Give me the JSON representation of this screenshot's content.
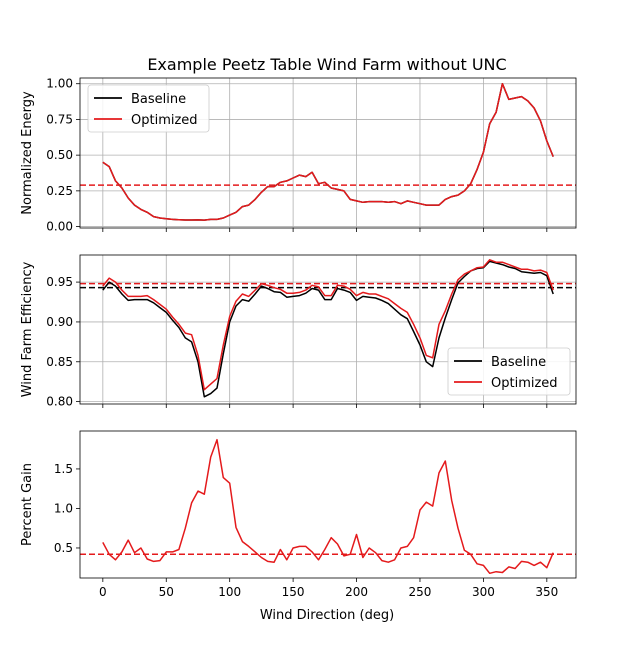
{
  "chart_data": [
    {
      "type": "line",
      "title": "Example Peetz Table Wind Farm without UNC",
      "xlabel": "",
      "ylabel": "Normalized Energy",
      "xlim": [
        -18,
        373
      ],
      "ylim": [
        -0.01,
        1.04
      ],
      "xticks": [
        0,
        50,
        100,
        150,
        200,
        250,
        300,
        350
      ],
      "yticks": [
        "0.00",
        "0.25",
        "0.50",
        "0.75",
        "1.00"
      ],
      "xtick_labels_visible": false,
      "grid": true,
      "legend": "top-left",
      "x": [
        0,
        5,
        10,
        15,
        20,
        25,
        30,
        35,
        40,
        45,
        50,
        55,
        60,
        65,
        70,
        75,
        80,
        85,
        90,
        95,
        100,
        105,
        110,
        115,
        120,
        125,
        130,
        135,
        140,
        145,
        150,
        155,
        160,
        165,
        170,
        175,
        180,
        185,
        190,
        195,
        200,
        205,
        210,
        215,
        220,
        225,
        230,
        235,
        240,
        245,
        250,
        255,
        260,
        265,
        270,
        275,
        280,
        285,
        290,
        295,
        300,
        305,
        310,
        315,
        320,
        325,
        330,
        335,
        340,
        345,
        350,
        355
      ],
      "series": [
        {
          "name": "Baseline",
          "color": "#000000",
          "values": [
            0.45,
            0.42,
            0.32,
            0.27,
            0.2,
            0.15,
            0.12,
            0.1,
            0.07,
            0.06,
            0.055,
            0.05,
            0.048,
            0.046,
            0.046,
            0.047,
            0.045,
            0.05,
            0.05,
            0.06,
            0.08,
            0.1,
            0.14,
            0.15,
            0.19,
            0.24,
            0.28,
            0.28,
            0.31,
            0.32,
            0.34,
            0.36,
            0.35,
            0.38,
            0.3,
            0.31,
            0.27,
            0.26,
            0.25,
            0.19,
            0.18,
            0.17,
            0.175,
            0.175,
            0.175,
            0.17,
            0.175,
            0.16,
            0.18,
            0.17,
            0.16,
            0.15,
            0.15,
            0.15,
            0.19,
            0.21,
            0.22,
            0.25,
            0.3,
            0.4,
            0.52,
            0.72,
            0.8,
            1.0,
            0.89,
            0.9,
            0.91,
            0.88,
            0.83,
            0.74,
            0.6,
            0.49
          ]
        },
        {
          "name": "Optimized",
          "color": "#e41a1c",
          "values": [
            0.45,
            0.42,
            0.32,
            0.27,
            0.2,
            0.15,
            0.12,
            0.1,
            0.07,
            0.06,
            0.055,
            0.05,
            0.048,
            0.046,
            0.046,
            0.047,
            0.045,
            0.05,
            0.05,
            0.06,
            0.08,
            0.1,
            0.14,
            0.15,
            0.19,
            0.24,
            0.28,
            0.28,
            0.31,
            0.32,
            0.34,
            0.36,
            0.35,
            0.38,
            0.3,
            0.31,
            0.27,
            0.26,
            0.25,
            0.19,
            0.18,
            0.17,
            0.175,
            0.175,
            0.175,
            0.17,
            0.175,
            0.16,
            0.18,
            0.17,
            0.16,
            0.15,
            0.15,
            0.15,
            0.19,
            0.21,
            0.22,
            0.25,
            0.3,
            0.4,
            0.52,
            0.72,
            0.8,
            1.0,
            0.89,
            0.9,
            0.91,
            0.88,
            0.83,
            0.74,
            0.6,
            0.49
          ]
        }
      ],
      "hlines": [
        {
          "y": 0.29,
          "color": "#e41a1c",
          "style": "dashed"
        }
      ]
    },
    {
      "type": "line",
      "title": "",
      "xlabel": "",
      "ylabel": "Wind Farm Efficiency",
      "xlim": [
        -18,
        373
      ],
      "ylim": [
        0.797,
        0.984
      ],
      "xticks": [
        0,
        50,
        100,
        150,
        200,
        250,
        300,
        350
      ],
      "yticks": [
        "0.80",
        "0.85",
        "0.90",
        "0.95"
      ],
      "xtick_labels_visible": false,
      "grid": true,
      "legend": "bottom-right",
      "x": [
        0,
        5,
        10,
        15,
        20,
        25,
        30,
        35,
        40,
        45,
        50,
        55,
        60,
        65,
        70,
        75,
        80,
        85,
        90,
        95,
        100,
        105,
        110,
        115,
        120,
        125,
        130,
        135,
        140,
        145,
        150,
        155,
        160,
        165,
        170,
        175,
        180,
        185,
        190,
        195,
        200,
        205,
        210,
        215,
        220,
        225,
        230,
        235,
        240,
        245,
        250,
        255,
        260,
        265,
        270,
        275,
        280,
        285,
        290,
        295,
        300,
        305,
        310,
        315,
        320,
        325,
        330,
        335,
        340,
        345,
        350,
        355
      ],
      "series": [
        {
          "name": "Baseline",
          "color": "#000000",
          "values": [
            0.94,
            0.95,
            0.945,
            0.935,
            0.927,
            0.928,
            0.928,
            0.928,
            0.924,
            0.918,
            0.912,
            0.902,
            0.893,
            0.88,
            0.875,
            0.85,
            0.806,
            0.81,
            0.817,
            0.86,
            0.9,
            0.92,
            0.928,
            0.926,
            0.935,
            0.945,
            0.942,
            0.938,
            0.937,
            0.931,
            0.932,
            0.933,
            0.936,
            0.942,
            0.94,
            0.928,
            0.928,
            0.942,
            0.94,
            0.937,
            0.927,
            0.932,
            0.931,
            0.93,
            0.927,
            0.923,
            0.916,
            0.909,
            0.904,
            0.888,
            0.871,
            0.85,
            0.844,
            0.88,
            0.905,
            0.928,
            0.949,
            0.957,
            0.964,
            0.967,
            0.968,
            0.976,
            0.974,
            0.972,
            0.969,
            0.967,
            0.963,
            0.962,
            0.961,
            0.962,
            0.958,
            0.935
          ]
        },
        {
          "name": "Optimized",
          "color": "#e41a1c",
          "values": [
            0.945,
            0.955,
            0.95,
            0.94,
            0.932,
            0.932,
            0.932,
            0.933,
            0.928,
            0.922,
            0.916,
            0.906,
            0.897,
            0.886,
            0.884,
            0.858,
            0.815,
            0.822,
            0.829,
            0.871,
            0.907,
            0.926,
            0.935,
            0.932,
            0.94,
            0.948,
            0.946,
            0.943,
            0.941,
            0.936,
            0.936,
            0.937,
            0.94,
            0.946,
            0.944,
            0.933,
            0.933,
            0.946,
            0.945,
            0.941,
            0.933,
            0.937,
            0.935,
            0.935,
            0.932,
            0.929,
            0.923,
            0.917,
            0.912,
            0.897,
            0.88,
            0.858,
            0.855,
            0.897,
            0.914,
            0.935,
            0.953,
            0.96,
            0.964,
            0.968,
            0.969,
            0.978,
            0.975,
            0.975,
            0.972,
            0.969,
            0.966,
            0.966,
            0.964,
            0.965,
            0.962,
            0.94
          ]
        }
      ],
      "hlines": [
        {
          "y": 0.943,
          "color": "#000000",
          "style": "dashed"
        },
        {
          "y": 0.948,
          "color": "#e41a1c",
          "style": "dashed"
        }
      ]
    },
    {
      "type": "line",
      "title": "",
      "xlabel": "Wind Direction (deg)",
      "ylabel": "Percent Gain",
      "xlim": [
        -18,
        373
      ],
      "ylim": [
        0.12,
        1.98
      ],
      "xticks": [
        0,
        50,
        100,
        150,
        200,
        250,
        300,
        350
      ],
      "yticks": [
        "0.5",
        "1.0",
        "1.5"
      ],
      "xtick_labels_visible": true,
      "grid": false,
      "legend": "none",
      "x": [
        0,
        5,
        10,
        15,
        20,
        25,
        30,
        35,
        40,
        45,
        50,
        55,
        60,
        65,
        70,
        75,
        80,
        85,
        90,
        95,
        100,
        105,
        110,
        115,
        120,
        125,
        130,
        135,
        140,
        145,
        150,
        155,
        160,
        165,
        170,
        175,
        180,
        185,
        190,
        195,
        200,
        205,
        210,
        215,
        220,
        225,
        230,
        235,
        240,
        245,
        250,
        255,
        260,
        265,
        270,
        275,
        280,
        285,
        290,
        295,
        300,
        305,
        310,
        315,
        320,
        325,
        330,
        335,
        340,
        345,
        350,
        355
      ],
      "series": [
        {
          "name": "",
          "color": "#e41a1c",
          "values": [
            0.57,
            0.42,
            0.35,
            0.45,
            0.6,
            0.44,
            0.5,
            0.36,
            0.33,
            0.34,
            0.45,
            0.45,
            0.48,
            0.75,
            1.07,
            1.22,
            1.18,
            1.65,
            1.87,
            1.39,
            1.32,
            0.76,
            0.58,
            0.52,
            0.45,
            0.38,
            0.33,
            0.32,
            0.48,
            0.35,
            0.5,
            0.52,
            0.52,
            0.45,
            0.35,
            0.48,
            0.63,
            0.55,
            0.4,
            0.42,
            0.67,
            0.38,
            0.5,
            0.44,
            0.34,
            0.32,
            0.35,
            0.5,
            0.52,
            0.63,
            0.98,
            1.08,
            1.03,
            1.45,
            1.6,
            1.1,
            0.75,
            0.47,
            0.42,
            0.3,
            0.28,
            0.18,
            0.2,
            0.19,
            0.26,
            0.24,
            0.33,
            0.32,
            0.28,
            0.32,
            0.25,
            0.44
          ]
        }
      ],
      "hlines": [
        {
          "y": 0.42,
          "color": "#e41a1c",
          "style": "dashed"
        }
      ]
    }
  ]
}
